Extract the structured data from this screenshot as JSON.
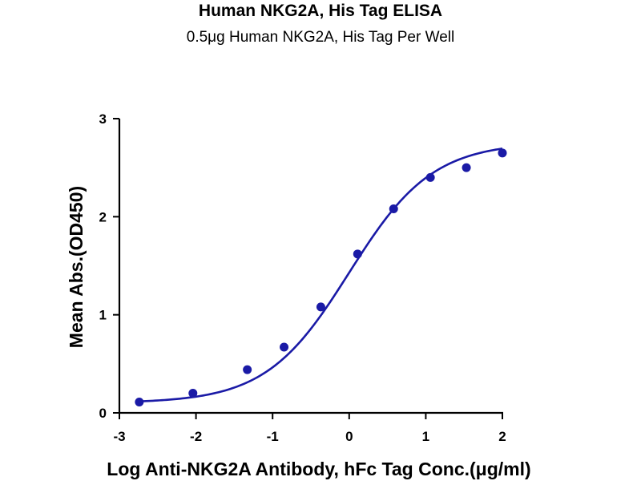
{
  "chart_data": {
    "type": "scatter",
    "title": "Human NKG2A, His Tag ELISA",
    "subtitle": "0.5μg Human NKG2A, His Tag Per Well",
    "xlabel": "Log Anti-NKG2A Antibody, hFc Tag Conc.(μg/ml)",
    "ylabel": "Mean Abs.(OD450)",
    "xlim": [
      -3,
      2
    ],
    "ylim": [
      0,
      3
    ],
    "x_ticks": [
      -3,
      -2,
      -1,
      0,
      1,
      2
    ],
    "x_tick_labels": [
      "-3",
      "-2",
      "-1",
      "0",
      "1",
      "2"
    ],
    "y_ticks": [
      0,
      1,
      2,
      3
    ],
    "y_tick_labels": [
      "0",
      "1",
      "2",
      "3"
    ],
    "grid": false,
    "legend": "none",
    "series": [
      {
        "marker_color": "#1a1aa6",
        "x": [
          -2.74,
          -2.04,
          -1.33,
          -0.85,
          -0.37,
          0.11,
          0.58,
          1.06,
          1.53,
          2.0
        ],
        "y": [
          0.11,
          0.2,
          0.44,
          0.67,
          1.08,
          1.62,
          2.08,
          2.4,
          2.5,
          2.65
        ]
      }
    ],
    "fit_curve": {
      "type": "four-parameter logistic",
      "color": "#1a1aa6",
      "bottom": 0.1,
      "top": 2.76,
      "log_ec50": 0.0,
      "hill_slope": 0.8
    }
  }
}
